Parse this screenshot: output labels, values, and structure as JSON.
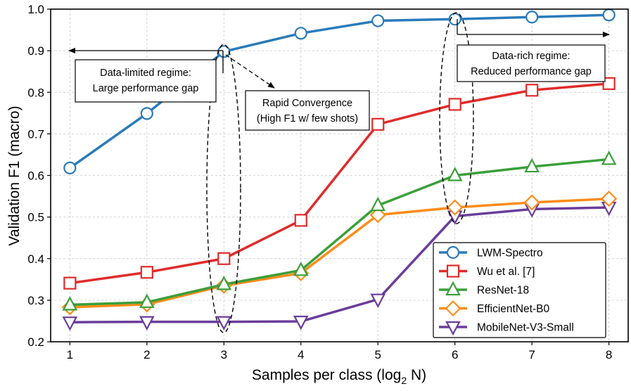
{
  "chart_data": {
    "type": "line",
    "xlabel": "Samples per class (log",
    "xlabel_sub": "2",
    "xlabel_tail": " N)",
    "ylabel": "Validation F1 (macro)",
    "x": [
      1,
      2,
      3,
      4,
      5,
      6,
      7,
      8
    ],
    "xlim": [
      0.75,
      8.25
    ],
    "ylim": [
      0.2,
      1.0
    ],
    "x_ticks": [
      "1",
      "2",
      "3",
      "4",
      "5",
      "6",
      "7",
      "8"
    ],
    "y_ticks": [
      "0.2",
      "0.3",
      "0.4",
      "0.5",
      "0.6",
      "0.7",
      "0.8",
      "0.9",
      "1.0"
    ],
    "grid": true,
    "legend_position": "lower right",
    "series": [
      {
        "name": "LWM-Spectro",
        "color": "#2b7bba",
        "marker": "circle",
        "values": [
          0.618,
          0.749,
          0.898,
          0.942,
          0.972,
          0.976,
          0.981,
          0.986
        ]
      },
      {
        "name": "Wu et al. [7]",
        "color": "#e02b2b",
        "marker": "square",
        "values": [
          0.341,
          0.367,
          0.4,
          0.492,
          0.723,
          0.771,
          0.805,
          0.821
        ]
      },
      {
        "name": "ResNet-18",
        "color": "#3a9f3a",
        "marker": "triangle-up",
        "values": [
          0.289,
          0.295,
          0.338,
          0.372,
          0.528,
          0.6,
          0.621,
          0.639
        ]
      },
      {
        "name": "EfficientNet-B0",
        "color": "#ff8c1a",
        "marker": "diamond",
        "values": [
          0.283,
          0.29,
          0.335,
          0.365,
          0.505,
          0.523,
          0.535,
          0.544
        ]
      },
      {
        "name": "MobileNet-V3-Small",
        "color": "#6a3d9a",
        "marker": "triangle-down",
        "values": [
          0.247,
          0.248,
          0.248,
          0.249,
          0.302,
          0.502,
          0.519,
          0.523
        ]
      }
    ],
    "annotations": {
      "limited": {
        "line1": "Data-limited regime:",
        "line2": "Large performance gap"
      },
      "rapid": {
        "line1": "Rapid Convergence",
        "line2": "(High F1 w/ few shots)"
      },
      "rich": {
        "line1": "Data-rich regime:",
        "line2": "Reduced performance gap"
      }
    }
  }
}
